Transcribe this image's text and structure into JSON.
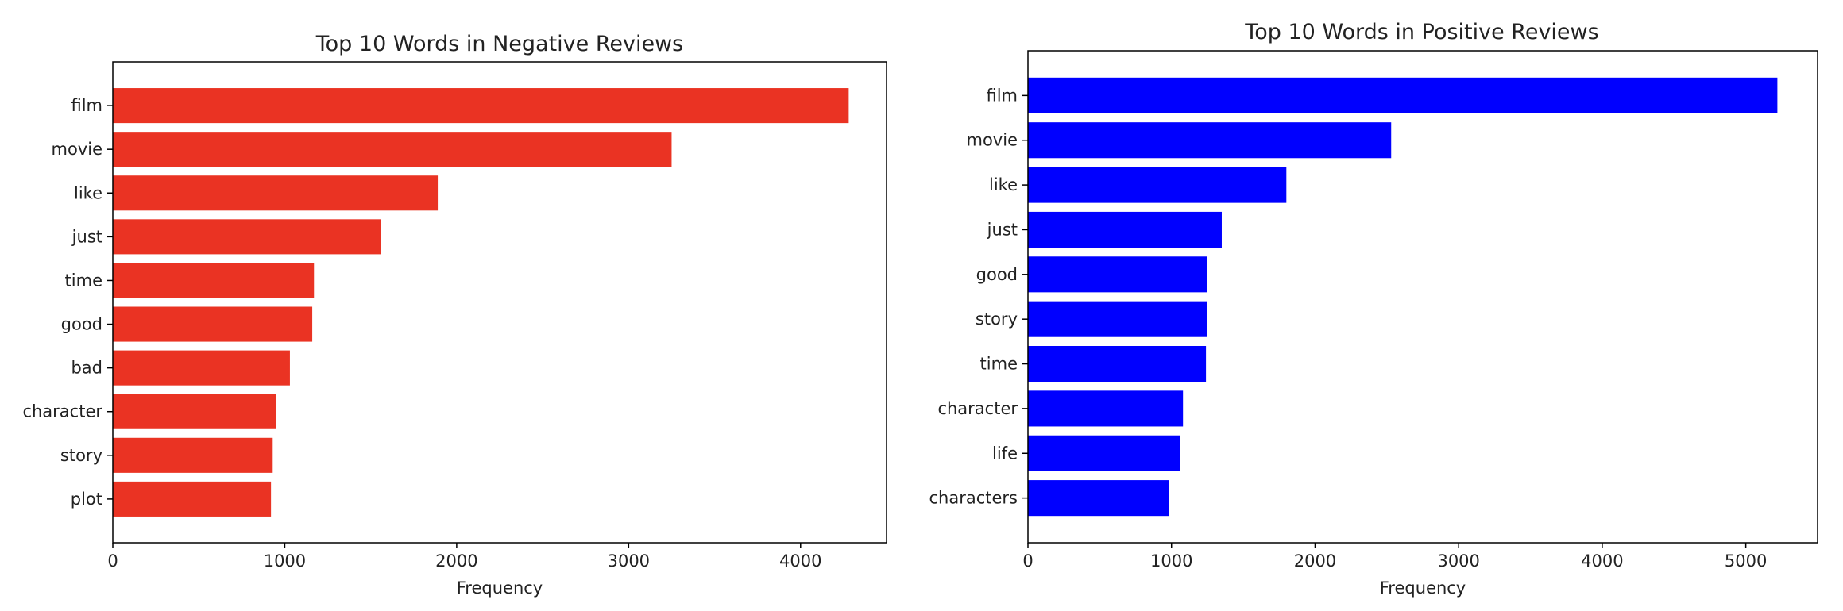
{
  "chart_data": [
    {
      "type": "bar",
      "orientation": "horizontal",
      "title": "Top 10 Words in Negative Reviews",
      "xlabel": "Frequency",
      "ylabel": "",
      "categories": [
        "film",
        "movie",
        "like",
        "just",
        "time",
        "good",
        "bad",
        "character",
        "story",
        "plot"
      ],
      "values": [
        4280,
        3250,
        1890,
        1560,
        1170,
        1160,
        1030,
        950,
        930,
        920
      ],
      "xlim": [
        0,
        4500
      ],
      "xticks": [
        0,
        1000,
        2000,
        3000,
        4000
      ],
      "xtick_labels": [
        "0",
        "1000",
        "2000",
        "3000",
        "4000"
      ],
      "color": "#ea3323",
      "grid": false
    },
    {
      "type": "bar",
      "orientation": "horizontal",
      "title": "Top 10 Words in Positive Reviews",
      "xlabel": "Frequency",
      "ylabel": "",
      "categories": [
        "film",
        "movie",
        "like",
        "just",
        "good",
        "story",
        "time",
        "character",
        "life",
        "characters"
      ],
      "values": [
        5220,
        2530,
        1800,
        1350,
        1250,
        1250,
        1240,
        1080,
        1060,
        980
      ],
      "xlim": [
        0,
        5500
      ],
      "xticks": [
        0,
        1000,
        2000,
        3000,
        4000,
        5000
      ],
      "xtick_labels": [
        "0",
        "1000",
        "2000",
        "3000",
        "4000",
        "5000"
      ],
      "color": "#0000ff",
      "grid": false
    }
  ]
}
